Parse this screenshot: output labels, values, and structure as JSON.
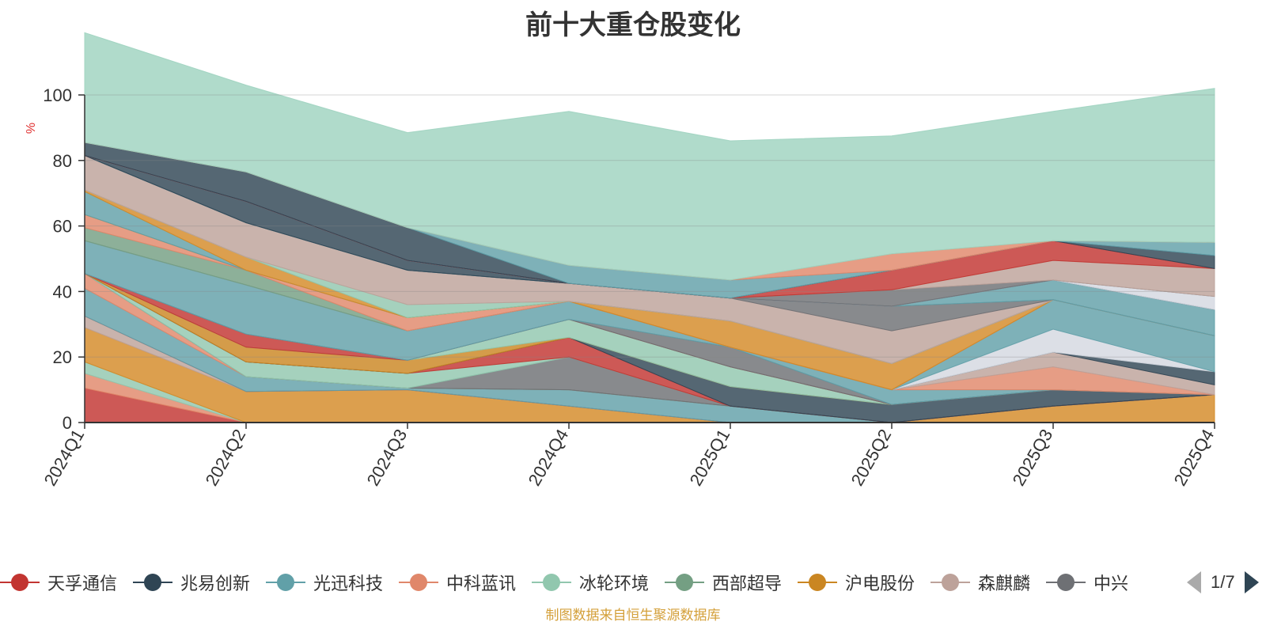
{
  "chart_data": {
    "type": "area",
    "title": "前十大重仓股变化",
    "ylabel": "%",
    "ylim": [
      0,
      100
    ],
    "yticks": [
      0,
      20,
      40,
      60,
      80,
      100
    ],
    "categories": [
      "2024Q1",
      "2024Q2",
      "2024Q3",
      "2024Q4",
      "2025Q1",
      "2025Q2",
      "2025Q3",
      "2025Q4"
    ],
    "grid": true,
    "legend_position": "bottom",
    "series": [
      {
        "name": "天孚通信",
        "color": "#c23531",
        "values": [
          10.5,
          0,
          0,
          0,
          0,
          0,
          0,
          0
        ]
      },
      {
        "name": null,
        "color": "#e0876a",
        "values": [
          4.5,
          0,
          0,
          0,
          0,
          0,
          0,
          0
        ]
      },
      {
        "name": null,
        "color": "#91c7ae",
        "values": [
          3.5,
          0,
          0,
          0,
          0,
          0,
          0,
          0
        ]
      },
      {
        "name": "沪电股份",
        "color": "#d48a27",
        "values": [
          10.5,
          9.5,
          10,
          5,
          0,
          0,
          5,
          8.5
        ]
      },
      {
        "name": null,
        "color": "#bda29a",
        "values": [
          3.5,
          0,
          0,
          0,
          0,
          0,
          0,
          0
        ]
      },
      {
        "name": "天孚通信",
        "color": "#c23531",
        "values": [
          0,
          0,
          0,
          0,
          0,
          0,
          0,
          0
        ]
      },
      {
        "name": "光迅科技",
        "color": "#61a0a8",
        "values": [
          8.5,
          4.5,
          0.5,
          5,
          5,
          0,
          0,
          0
        ]
      },
      {
        "name": "中科蓝讯",
        "color": "#e0876a",
        "values": [
          4.5,
          0,
          0,
          0,
          0,
          0,
          0,
          0
        ]
      },
      {
        "name": "西部超导",
        "color": "#749f83",
        "values": [
          0,
          0,
          0,
          0,
          0,
          0,
          0,
          0
        ]
      },
      {
        "name": null,
        "color": "#6e7074",
        "values": [
          0,
          0,
          0,
          10,
          0,
          0,
          0,
          0
        ]
      },
      {
        "name": "冰轮环境",
        "color": "#91c7ae",
        "values": [
          0,
          4.5,
          4.5,
          0,
          0,
          0,
          0,
          0
        ]
      },
      {
        "name": "天孚通信",
        "color": "#c23531",
        "values": [
          0,
          0,
          0,
          6,
          0,
          0,
          0,
          0
        ]
      },
      {
        "name": "兆易创新",
        "color": "#2f4554",
        "values": [
          0,
          0,
          0,
          0,
          6,
          5.5,
          5,
          0
        ]
      },
      {
        "name": null,
        "color": "#ca8622",
        "values": [
          0,
          4.5,
          4,
          0,
          0,
          0,
          0,
          0
        ]
      },
      {
        "name": "冰轮环境",
        "color": "#91c7ae",
        "values": [
          0,
          0,
          0,
          5.5,
          6,
          0,
          0,
          0
        ]
      },
      {
        "name": "天孚通信",
        "color": "#c23531",
        "values": [
          0,
          4,
          0,
          0,
          0,
          0,
          0,
          0
        ]
      },
      {
        "name": null,
        "color": "#6e7074",
        "values": [
          0,
          0,
          0,
          0,
          6,
          0,
          0,
          0
        ]
      },
      {
        "name": "光迅科技",
        "color": "#61a0a8",
        "values": [
          10,
          15,
          9,
          5.5,
          0,
          4.5,
          0,
          0
        ]
      },
      {
        "name": "中科蓝讯",
        "color": "#e0876a",
        "values": [
          0,
          0,
          0,
          0,
          0,
          0,
          7,
          0
        ]
      },
      {
        "name": "森麒麟",
        "color": "#bda29a",
        "values": [
          0,
          0,
          0,
          0,
          0,
          0,
          4.5,
          3
        ]
      },
      {
        "name": "兆易创新",
        "color": "#2f4554",
        "values": [
          0,
          0,
          0,
          0,
          0,
          0,
          0,
          4
        ]
      },
      {
        "name": null,
        "color": "#d4d8e0",
        "values": [
          0,
          0,
          0,
          0,
          0,
          0,
          7,
          0
        ]
      },
      {
        "name": "光迅科技",
        "color": "#61a0a8",
        "values": [
          0,
          0,
          0,
          0,
          0,
          0,
          9,
          11
        ]
      },
      {
        "name": "西部超导",
        "color": "#749f83",
        "values": [
          4,
          4.5,
          0,
          0,
          0,
          0,
          0,
          0
        ]
      },
      {
        "name": "中科蓝讯",
        "color": "#e0876a",
        "values": [
          4,
          0,
          4,
          0,
          0,
          0,
          0,
          0
        ]
      },
      {
        "name": "沪电股份",
        "color": "#d48a27",
        "values": [
          0,
          0,
          0,
          0,
          8,
          8,
          0,
          0
        ]
      },
      {
        "name": "光迅科技",
        "color": "#61a0a8",
        "values": [
          7,
          0,
          0,
          0,
          0,
          0,
          0,
          0
        ]
      },
      {
        "name": "沪电股份",
        "color": "#d48a27",
        "values": [
          0.5,
          4,
          0,
          0,
          0,
          0,
          0,
          0
        ]
      },
      {
        "name": "冰轮环境",
        "color": "#91c7ae",
        "values": [
          0,
          0,
          4,
          0,
          0,
          0,
          0,
          0
        ]
      },
      {
        "name": "森麒麟",
        "color": "#bda29a",
        "values": [
          10.5,
          10.5,
          10.5,
          5.5,
          7,
          10,
          0,
          0
        ]
      },
      {
        "name": null,
        "color": "#6e7074",
        "values": [
          0,
          0,
          0,
          0,
          0,
          7.5,
          0,
          0
        ]
      },
      {
        "name": "光迅科技",
        "color": "#61a0a8",
        "values": [
          0,
          0,
          0,
          0,
          0,
          0,
          6,
          8
        ]
      },
      {
        "name": "兆易创新",
        "color": "#2f4554",
        "values": [
          0,
          6.5,
          3,
          0,
          0,
          0,
          0,
          0
        ]
      },
      {
        "name": null,
        "color": "#d4d8e0",
        "values": [
          0,
          0,
          0,
          0,
          0,
          0,
          0,
          4
        ]
      },
      {
        "name": null,
        "color": "#6e7074",
        "values": [
          0,
          0,
          0,
          0,
          0,
          5,
          0,
          0
        ]
      },
      {
        "name": "森麒麟",
        "color": "#bda29a",
        "values": [
          0,
          0,
          0,
          0,
          0,
          0,
          6,
          8.5
        ]
      },
      {
        "name": "天孚通信",
        "color": "#c23531",
        "values": [
          0,
          0,
          0,
          0,
          0,
          6,
          6,
          0
        ]
      },
      {
        "name": "兆易创新",
        "color": "#2f4554",
        "values": [
          4,
          9,
          10,
          0,
          0,
          0,
          0,
          4
        ]
      },
      {
        "name": "光迅科技",
        "color": "#61a0a8",
        "values": [
          0,
          0,
          0,
          5.5,
          5.5,
          0,
          0,
          4
        ]
      },
      {
        "name": null,
        "color": "#e0876a",
        "values": [
          0,
          0,
          0,
          0,
          0,
          5,
          0,
          0
        ]
      },
      {
        "name": null,
        "color": "#9fd3c0",
        "values": [
          33.5,
          26.5,
          29,
          47,
          42.5,
          36,
          39.5,
          47
        ]
      }
    ]
  },
  "legend": {
    "items": [
      {
        "label": "天孚通信",
        "color": "#c23531"
      },
      {
        "label": "兆易创新",
        "color": "#2f4554"
      },
      {
        "label": "光迅科技",
        "color": "#61a0a8"
      },
      {
        "label": "中科蓝讯",
        "color": "#e0876a"
      },
      {
        "label": "冰轮环境",
        "color": "#91c7ae"
      },
      {
        "label": "西部超导",
        "color": "#749f83"
      },
      {
        "label": "沪电股份",
        "color": "#ca8622"
      },
      {
        "label": "森麒麟",
        "color": "#bda29a"
      },
      {
        "label": "中兴",
        "color": "#6e7074"
      }
    ],
    "page": "1/7"
  },
  "source_note": "制图数据来自恒生聚源数据库"
}
